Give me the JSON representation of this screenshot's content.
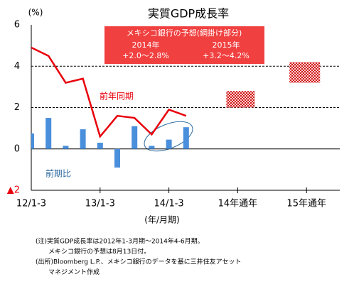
{
  "chart_data": {
    "type": "bar",
    "title": "実質GDP成長率",
    "y_unit_label": "(%)",
    "xlabel": "(年/月期)",
    "categories": [
      "12/1-3",
      null,
      null,
      null,
      "13/1-3",
      null,
      null,
      null,
      "14/1-3",
      null
    ],
    "series": [
      {
        "name": "前期比",
        "type": "bar",
        "color": "#4a8fdc",
        "values": [
          0.75,
          1.5,
          0.15,
          0.95,
          0.3,
          -0.9,
          1.1,
          0.15,
          0.45,
          1.05
        ]
      },
      {
        "name": "前年同期",
        "type": "line",
        "color": "#e8000b",
        "values": [
          4.9,
          4.5,
          3.2,
          3.4,
          0.6,
          1.6,
          1.5,
          0.7,
          1.9,
          1.6
        ]
      }
    ],
    "forecast": {
      "title": "メキシコ銀行の予想(網掛け部分)",
      "color": "#f04040",
      "items": [
        {
          "category": "14年通年",
          "period": "2014年",
          "low": 2.0,
          "high": 2.8,
          "label": "+2.0～2.8%"
        },
        {
          "category": "15年通年",
          "period": "2015年",
          "low": 3.2,
          "high": 4.2,
          "label": "+3.2～4.2%"
        }
      ]
    },
    "ylim": [
      -2,
      6
    ],
    "yticks": [
      {
        "value": -2,
        "label": "▲2"
      },
      0,
      2,
      4,
      6
    ],
    "grid": true,
    "notes": [
      "(注)実質GDP成長率は2012年1-3月期～2014年4-6月期。",
      "メキシコ銀行の予想は8月13日付。",
      "(出所)Bloomberg L.P.、メキシコ銀行のデータを基に三井住友アセット",
      "マネジメント作成"
    ]
  }
}
